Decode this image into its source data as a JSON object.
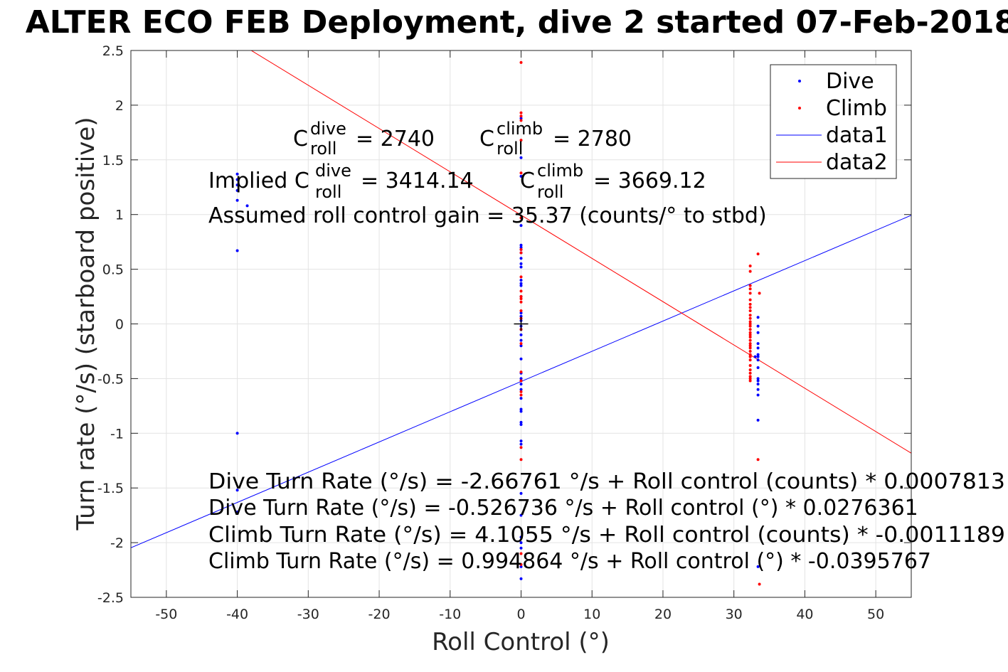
{
  "chart_data": {
    "type": "scatter",
    "title": "ALTER ECO FEB Deployment, dive 2 started 07-Feb-2018",
    "xlabel": "Roll Control (°)",
    "ylabel": "Turn rate (°/s) (starboard positive)",
    "xlim": [
      -55,
      55
    ],
    "ylim": [
      -2.5,
      2.5
    ],
    "xticks": [
      -50,
      -40,
      -30,
      -20,
      -10,
      0,
      10,
      20,
      30,
      40,
      50
    ],
    "xtick_labels": [
      "-50",
      "-40",
      "-30",
      "-20",
      "-10",
      "0",
      "10",
      "20",
      "30",
      "40",
      "50"
    ],
    "yticks": [
      -2.5,
      -2,
      -1.5,
      -1,
      -0.5,
      0,
      0.5,
      1,
      1.5,
      2,
      2.5
    ],
    "ytick_labels": [
      "-2.5",
      "-2",
      "-1.5",
      "-1",
      "-0.5",
      "0",
      "0.5",
      "1",
      "1.5",
      "2",
      "2.5"
    ],
    "grid": true,
    "legend_position": "top-right",
    "legend": [
      {
        "label": "Dive",
        "kind": "marker",
        "color": "#0000ff"
      },
      {
        "label": "Climb",
        "kind": "marker",
        "color": "#ff0000"
      },
      {
        "label": "data1",
        "kind": "line",
        "color": "#0000ff"
      },
      {
        "label": "data2",
        "kind": "line",
        "color": "#ff0000"
      }
    ],
    "series": [
      {
        "name": "Dive",
        "kind": "scatter",
        "color": "#0000ff",
        "points": [
          [
            -40,
            1.37
          ],
          [
            -40,
            1.32
          ],
          [
            -40,
            1.27
          ],
          [
            -40,
            1.22
          ],
          [
            -40,
            1.13
          ],
          [
            -38.6,
            1.08
          ],
          [
            -40,
            0.67
          ],
          [
            -40,
            -1.0
          ],
          [
            -40,
            -1.52
          ],
          [
            -40,
            -1.72
          ],
          [
            0,
            1.88
          ],
          [
            0,
            1.52
          ],
          [
            0,
            1.35
          ],
          [
            0,
            0.9
          ],
          [
            0,
            0.72
          ],
          [
            0,
            0.7
          ],
          [
            0,
            0.68
          ],
          [
            0,
            0.65
          ],
          [
            0,
            0.6
          ],
          [
            0,
            0.55
          ],
          [
            0,
            0.52
          ],
          [
            0,
            0.4
          ],
          [
            0,
            0.37
          ],
          [
            0,
            0.35
          ],
          [
            0,
            0.25
          ],
          [
            0,
            0.1
          ],
          [
            0,
            0.07
          ],
          [
            0,
            0.03
          ],
          [
            0,
            -0.02
          ],
          [
            0,
            -0.05
          ],
          [
            0,
            -0.1
          ],
          [
            0,
            -0.15
          ],
          [
            0,
            -0.2
          ],
          [
            0,
            -0.32
          ],
          [
            0,
            -0.45
          ],
          [
            0,
            -0.5
          ],
          [
            0,
            -0.52
          ],
          [
            0,
            -0.55
          ],
          [
            0,
            -0.6
          ],
          [
            0,
            -0.68
          ],
          [
            0,
            -0.78
          ],
          [
            0,
            -0.8
          ],
          [
            0,
            -0.9
          ],
          [
            0,
            -0.92
          ],
          [
            0,
            -1.07
          ],
          [
            0,
            -1.1
          ],
          [
            0,
            -1.55
          ],
          [
            0,
            -1.75
          ],
          [
            0,
            -1.95
          ],
          [
            0,
            -2.0
          ],
          [
            0,
            -2.05
          ],
          [
            0,
            -2.22
          ],
          [
            0,
            -2.33
          ],
          [
            33.4,
            0.06
          ],
          [
            33.4,
            -0.02
          ],
          [
            33.4,
            -0.08
          ],
          [
            33.4,
            -0.18
          ],
          [
            33.4,
            -0.22
          ],
          [
            33.4,
            -0.28
          ],
          [
            33.4,
            -0.3
          ],
          [
            33.4,
            -0.33
          ],
          [
            33.4,
            -0.4
          ],
          [
            33.4,
            -0.5
          ],
          [
            33.4,
            -0.52
          ],
          [
            33.4,
            -0.55
          ],
          [
            33.4,
            -0.6
          ],
          [
            33.4,
            -0.65
          ],
          [
            33.4,
            -0.88
          ],
          [
            33.4,
            -2.22
          ],
          [
            33.0,
            -0.3
          ]
        ]
      },
      {
        "name": "Climb",
        "kind": "scatter",
        "color": "#ff0000",
        "points": [
          [
            0,
            2.39
          ],
          [
            0,
            1.93
          ],
          [
            0,
            1.9
          ],
          [
            0,
            1.86
          ],
          [
            0,
            1.68
          ],
          [
            0,
            1.38
          ],
          [
            0,
            0.97
          ],
          [
            0,
            0.68
          ],
          [
            0,
            0.65
          ],
          [
            0,
            0.43
          ],
          [
            0,
            0.3
          ],
          [
            0,
            0.25
          ],
          [
            0,
            0.23
          ],
          [
            0,
            0.2
          ],
          [
            0,
            0.12
          ],
          [
            0,
            0.05
          ],
          [
            0,
            -0.05
          ],
          [
            0,
            -0.18
          ],
          [
            0,
            -0.44
          ],
          [
            0,
            -0.52
          ],
          [
            0,
            -0.62
          ],
          [
            0,
            -0.65
          ],
          [
            0,
            -1.13
          ],
          [
            0,
            -1.24
          ],
          [
            0,
            -2.1
          ],
          [
            0,
            -2.2
          ],
          [
            32.3,
            0.53
          ],
          [
            32.3,
            0.48
          ],
          [
            32.3,
            0.35
          ],
          [
            32.3,
            0.32
          ],
          [
            32.3,
            0.28
          ],
          [
            32.3,
            0.22
          ],
          [
            32.3,
            0.18
          ],
          [
            32.3,
            0.15
          ],
          [
            32.3,
            0.12
          ],
          [
            32.3,
            0.08
          ],
          [
            32.3,
            0.05
          ],
          [
            32.3,
            0.02
          ],
          [
            32.3,
            0.0
          ],
          [
            32.3,
            -0.02
          ],
          [
            32.3,
            -0.05
          ],
          [
            32.3,
            -0.08
          ],
          [
            32.3,
            -0.1
          ],
          [
            32.3,
            -0.12
          ],
          [
            32.3,
            -0.15
          ],
          [
            32.3,
            -0.18
          ],
          [
            32.3,
            -0.2
          ],
          [
            32.3,
            -0.22
          ],
          [
            32.3,
            -0.25
          ],
          [
            32.3,
            -0.28
          ],
          [
            32.3,
            -0.3
          ],
          [
            32.3,
            -0.33
          ],
          [
            32.3,
            -0.38
          ],
          [
            32.3,
            -0.42
          ],
          [
            32.3,
            -0.45
          ],
          [
            32.3,
            -0.48
          ],
          [
            32.3,
            -0.5
          ],
          [
            32.3,
            -0.52
          ],
          [
            33.4,
            0.64
          ],
          [
            33.6,
            0.28
          ],
          [
            33.4,
            -1.24
          ],
          [
            33.6,
            -2.38
          ]
        ]
      },
      {
        "name": "data1",
        "kind": "line",
        "color": "#0000ff",
        "intercept": -0.526736,
        "slope": 0.0276361
      },
      {
        "name": "data2",
        "kind": "line",
        "color": "#ff0000",
        "intercept": 0.994864,
        "slope": -0.0395767
      }
    ],
    "center_marker": [
      0,
      0
    ],
    "annotations": {
      "c_dive": {
        "prefix": "C",
        "sup": "dive",
        "sub": "roll",
        "value": "= 2740"
      },
      "c_climb": {
        "prefix": "C",
        "sup": "climb",
        "sub": "roll",
        "value": "= 2780"
      },
      "implied_dive": {
        "prefix": "Implied C",
        "sup": "dive",
        "sub": "roll",
        "value": "= 3414.14"
      },
      "implied_climb": {
        "prefix": "C",
        "sup": "climb",
        "sub": "roll",
        "value": "= 3669.12"
      },
      "gain": "Assumed roll control gain = 35.37 (counts/° to stbd)",
      "eq1": "Dive Turn Rate (°/s) = -2.66761 °/s + Roll control (counts) * 0.0007813",
      "eq2": "Dive Turn Rate (°/s) = -0.526736 °/s + Roll control (°) * 0.0276361",
      "eq3": "Climb Turn Rate (°/s) = 4.1055 °/s + Roll control (counts) * -0.0011189",
      "eq4": "Climb Turn Rate (°/s) = 0.994864 °/s + Roll control (°) * -0.0395767"
    }
  }
}
